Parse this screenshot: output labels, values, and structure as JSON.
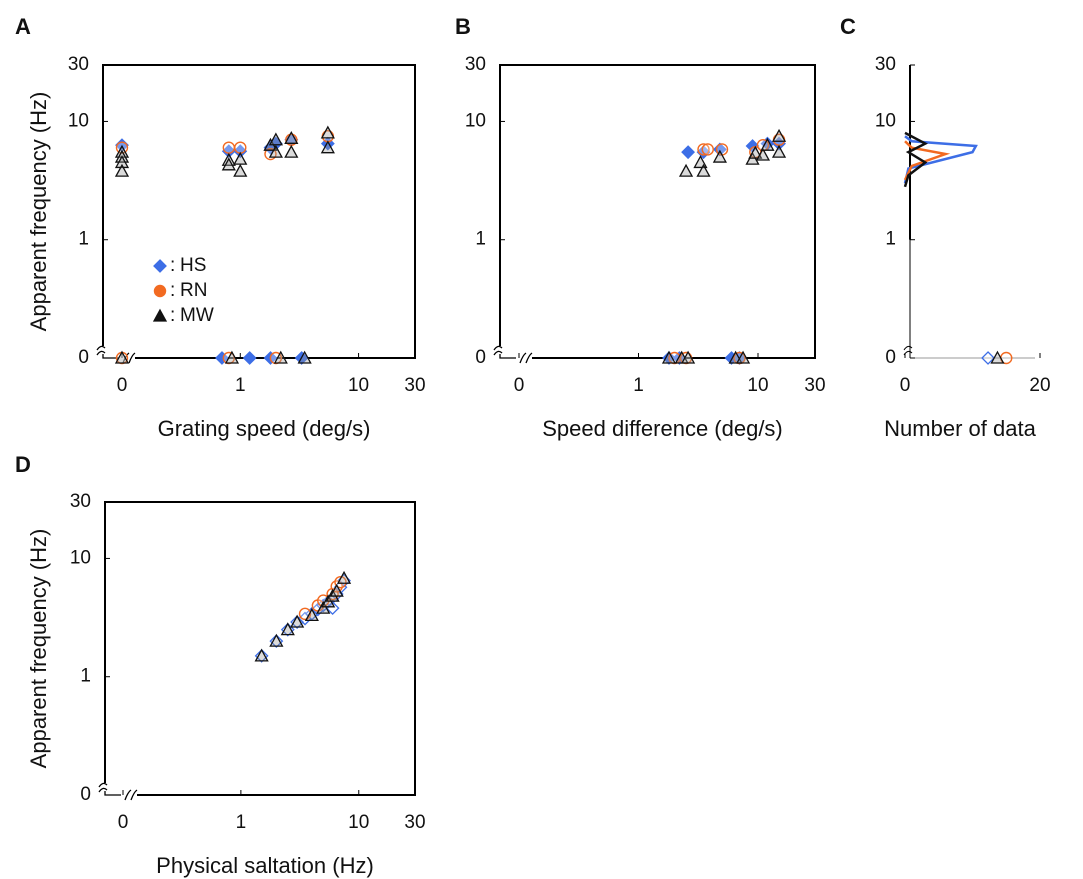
{
  "chart_data": [
    {
      "type": "scatter",
      "panel": "A",
      "xlabel": "Grating speed (deg/s)",
      "ylabel": "Apparent frequency (Hz)",
      "xscale": "log",
      "yscale": "log",
      "xlim": [
        0,
        30
      ],
      "ylim": [
        0,
        30
      ],
      "xticks": [
        0,
        1,
        10,
        30
      ],
      "yticks": [
        0,
        1,
        10,
        30
      ],
      "box": true,
      "legend": "left",
      "legend_separator": ":",
      "series": [
        {
          "name": "HS",
          "color": "#3d6ee6",
          "marker": "diamond",
          "filled": true,
          "x": [
            0,
            0.8,
            1.0,
            1.8,
            2.0,
            2.7,
            5.5,
            0.7,
            1.2,
            1.8,
            3.3
          ],
          "values": [
            6.3,
            5.6,
            5.6,
            6.0,
            6.5,
            7.0,
            6.5,
            0,
            0,
            0,
            0
          ]
        },
        {
          "name": "RN",
          "color": "#f26a21",
          "marker": "circle",
          "filled": false,
          "x": [
            0,
            0.8,
            1.0,
            1.8,
            2.7,
            5.5,
            0,
            0.8,
            2.0
          ],
          "values": [
            6.0,
            6.0,
            6.0,
            5.3,
            7.0,
            7.5,
            0,
            0,
            0
          ]
        },
        {
          "name": "MW",
          "color": "#111111",
          "marker": "triangle",
          "filled": false,
          "x": [
            0,
            0,
            0,
            0,
            0.8,
            0.8,
            1.0,
            1.0,
            1.8,
            2.0,
            2.0,
            2.7,
            2.7,
            5.5,
            5.5,
            0,
            0.85,
            2.2,
            3.5
          ],
          "values": [
            5.5,
            5.0,
            4.5,
            3.8,
            4.7,
            4.3,
            4.8,
            3.8,
            6.3,
            7.0,
            5.5,
            7.2,
            5.5,
            8.0,
            6.0,
            0,
            0,
            0,
            0
          ]
        }
      ]
    },
    {
      "type": "scatter",
      "panel": "B",
      "xlabel": "Speed difference (deg/s)",
      "xscale": "log",
      "yscale": "log",
      "xlim": [
        0,
        30
      ],
      "ylim": [
        0,
        30
      ],
      "xticks": [
        0,
        1,
        10,
        30
      ],
      "yticks": [
        0,
        1,
        10,
        30
      ],
      "box": true,
      "series": [
        {
          "name": "HS",
          "color": "#3d6ee6",
          "marker": "diamond",
          "filled": true,
          "x": [
            2.6,
            3.5,
            4.8,
            9,
            12,
            15,
            1.8,
            2.2,
            6,
            7
          ],
          "values": [
            5.5,
            5.5,
            5.8,
            6.2,
            6.5,
            6.5,
            0,
            0,
            0,
            0
          ]
        },
        {
          "name": "RN",
          "color": "#f26a21",
          "marker": "circle",
          "filled": false,
          "x": [
            3.5,
            3.8,
            5.0,
            9.5,
            11,
            15,
            2.0,
            2.5,
            7.0
          ],
          "values": [
            5.8,
            5.8,
            5.8,
            5.5,
            6.3,
            7.0,
            0,
            0,
            0
          ]
        },
        {
          "name": "MW",
          "color": "#111111",
          "marker": "triangle",
          "filled": false,
          "x": [
            2.5,
            3.3,
            3.5,
            4.8,
            9,
            9.5,
            11,
            12,
            15,
            15,
            1.8,
            2.3,
            2.6,
            6.5,
            7.5
          ],
          "values": [
            3.8,
            4.5,
            3.8,
            5.0,
            4.8,
            5.4,
            5.2,
            6.3,
            5.5,
            7.5,
            0,
            0,
            0,
            0,
            0
          ]
        }
      ]
    },
    {
      "type": "line",
      "panel": "C",
      "xlabel": "Number of data",
      "xscale": "linear",
      "yscale": "log",
      "xlim": [
        0,
        20
      ],
      "ylim": [
        0,
        30
      ],
      "xticks": [
        0,
        20
      ],
      "yticks": [
        0,
        1,
        10,
        30
      ],
      "box": false,
      "series": [
        {
          "name": "HS",
          "color": "#3d6ee6",
          "marker": "diamond",
          "zero_count": 12.3,
          "x": [
            0,
            0.5,
            10,
            10.5,
            1,
            0
          ],
          "values": [
            3.0,
            4.0,
            5.5,
            6.2,
            6.8,
            7.5
          ]
        },
        {
          "name": "RN",
          "color": "#f26a21",
          "marker": "circle",
          "zero_count": 15,
          "x": [
            0,
            1,
            6,
            1,
            0
          ],
          "values": [
            3.2,
            4.2,
            5.3,
            6.0,
            6.8
          ]
        },
        {
          "name": "MW",
          "color": "#111111",
          "marker": "triangle",
          "zero_count": 13.7,
          "x": [
            0,
            0.5,
            3,
            0.5,
            3,
            0
          ],
          "values": [
            2.8,
            3.5,
            4.5,
            5.5,
            6.5,
            8.0
          ]
        }
      ]
    },
    {
      "type": "scatter",
      "panel": "D",
      "xlabel": "Physical saltation (Hz)",
      "ylabel": "Apparent frequency (Hz)",
      "xscale": "log",
      "yscale": "log",
      "xlim": [
        0,
        30
      ],
      "ylim": [
        0,
        30
      ],
      "xticks": [
        0,
        1,
        10,
        30
      ],
      "yticks": [
        0,
        1,
        10,
        30
      ],
      "box": true,
      "series": [
        {
          "name": "HS",
          "color": "#3d6ee6",
          "marker": "diamond",
          "filled": false,
          "x": [
            1.5,
            2,
            2.5,
            3,
            3.5,
            4,
            4.5,
            5,
            5.5,
            6,
            6.5,
            7,
            7.5
          ],
          "values": [
            1.5,
            2,
            2.5,
            2.9,
            3.1,
            3.4,
            3.7,
            4.0,
            4.3,
            3.8,
            5.0,
            5.7,
            6.5
          ]
        },
        {
          "name": "RN",
          "color": "#f26a21",
          "marker": "circle",
          "filled": false,
          "x": [
            3.5,
            4.5,
            5,
            6,
            6.5,
            7
          ],
          "values": [
            3.4,
            4.0,
            4.4,
            5.0,
            5.8,
            6.3
          ]
        },
        {
          "name": "MW",
          "color": "#111111",
          "marker": "triangle",
          "filled": false,
          "x": [
            1.5,
            2,
            2.5,
            3,
            4,
            5,
            5.5,
            6,
            6.5,
            7.5
          ],
          "values": [
            1.5,
            2,
            2.5,
            2.9,
            3.3,
            3.8,
            4.3,
            4.8,
            5.3,
            6.8
          ]
        }
      ]
    }
  ]
}
